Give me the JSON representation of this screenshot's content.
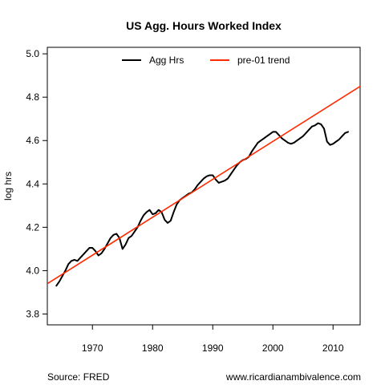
{
  "chart_data": {
    "type": "line",
    "title": "US Agg. Hours Worked Index",
    "xlabel": "",
    "ylabel": "log hrs",
    "xlim": [
      1962.5,
      2014.5
    ],
    "ylim": [
      3.75,
      5.03
    ],
    "xticks": [
      1970,
      1980,
      1990,
      2000,
      2010
    ],
    "yticks": [
      3.8,
      4.0,
      4.2,
      4.4,
      4.6,
      4.8,
      5.0
    ],
    "grid": false,
    "legend": "top-center",
    "series": [
      {
        "name": "Agg Hrs",
        "color": "#000000",
        "x": [
          1964.0,
          1964.5,
          1965.0,
          1965.5,
          1966.0,
          1966.5,
          1967.0,
          1967.5,
          1968.0,
          1968.5,
          1969.0,
          1969.5,
          1970.0,
          1970.5,
          1971.0,
          1971.5,
          1972.0,
          1972.5,
          1973.0,
          1973.5,
          1974.0,
          1974.5,
          1975.0,
          1975.5,
          1976.0,
          1976.5,
          1977.0,
          1977.5,
          1978.0,
          1978.5,
          1979.0,
          1979.5,
          1980.0,
          1980.5,
          1981.0,
          1981.5,
          1982.0,
          1982.5,
          1983.0,
          1983.5,
          1984.0,
          1984.5,
          1985.0,
          1985.5,
          1986.0,
          1986.5,
          1987.0,
          1987.5,
          1988.0,
          1988.5,
          1989.0,
          1989.5,
          1990.0,
          1990.5,
          1991.0,
          1991.5,
          1992.0,
          1992.5,
          1993.0,
          1993.5,
          1994.0,
          1994.5,
          1995.0,
          1995.5,
          1996.0,
          1996.5,
          1997.0,
          1997.5,
          1998.0,
          1998.5,
          1999.0,
          1999.5,
          2000.0,
          2000.5,
          2001.0,
          2001.5,
          2002.0,
          2002.5,
          2003.0,
          2003.5,
          2004.0,
          2004.5,
          2005.0,
          2005.5,
          2006.0,
          2006.5,
          2007.0,
          2007.5,
          2008.0,
          2008.5,
          2009.0,
          2009.5,
          2010.0,
          2010.5,
          2011.0,
          2011.5,
          2012.0,
          2012.5
        ],
        "values": [
          3.93,
          3.95,
          3.975,
          4.0,
          4.03,
          4.045,
          4.05,
          4.045,
          4.06,
          4.075,
          4.09,
          4.105,
          4.105,
          4.09,
          4.07,
          4.08,
          4.1,
          4.125,
          4.15,
          4.165,
          4.17,
          4.15,
          4.1,
          4.12,
          4.15,
          4.16,
          4.18,
          4.2,
          4.23,
          4.255,
          4.27,
          4.28,
          4.26,
          4.265,
          4.28,
          4.27,
          4.235,
          4.22,
          4.23,
          4.27,
          4.305,
          4.325,
          4.335,
          4.345,
          4.355,
          4.36,
          4.375,
          4.395,
          4.41,
          4.425,
          4.435,
          4.44,
          4.44,
          4.42,
          4.405,
          4.41,
          4.415,
          4.425,
          4.445,
          4.465,
          4.485,
          4.5,
          4.51,
          4.515,
          4.525,
          4.55,
          4.57,
          4.59,
          4.6,
          4.61,
          4.62,
          4.63,
          4.64,
          4.64,
          4.625,
          4.61,
          4.6,
          4.59,
          4.585,
          4.59,
          4.6,
          4.61,
          4.62,
          4.635,
          4.65,
          4.665,
          4.67,
          4.68,
          4.675,
          4.655,
          4.595,
          4.58,
          4.585,
          4.595,
          4.605,
          4.62,
          4.635,
          4.64
        ]
      },
      {
        "name": "pre-01 trend",
        "color": "#ff2a00",
        "x": [
          1962.5,
          2014.5
        ],
        "values": [
          3.94,
          4.85
        ]
      }
    ],
    "footer": {
      "source": "Source: FRED",
      "website": "www.ricardianambivalence.com"
    }
  }
}
